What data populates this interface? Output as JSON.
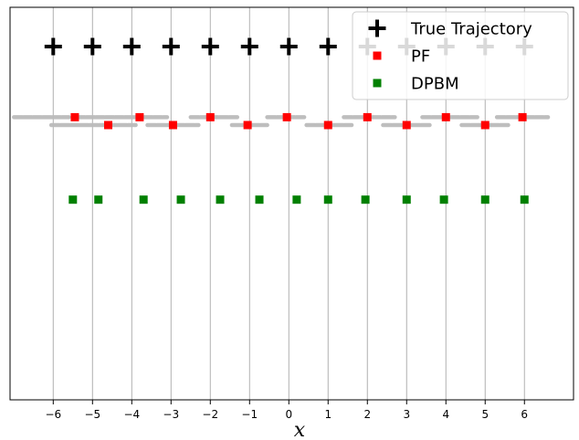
{
  "chart_data": {
    "type": "scatter",
    "xlabel": "x",
    "ylabel": "",
    "xlim": [
      -7.1,
      7.25
    ],
    "ylim": [
      0,
      1
    ],
    "x_ticks": [
      -6,
      -5,
      -4,
      -3,
      -2,
      -1,
      0,
      1,
      2,
      3,
      4,
      5,
      6
    ],
    "x_tick_labels": [
      "−6",
      "−5",
      "−4",
      "−3",
      "−2",
      "−1",
      "0",
      "1",
      "2",
      "3",
      "4",
      "5",
      "6"
    ],
    "grid": "vertical lines at x ticks",
    "legend": {
      "placement": "top-right",
      "entries": [
        "True Trajectory",
        "PF",
        "DPBM"
      ]
    },
    "particles": {
      "color": "#bbbbbb",
      "segments": [
        {
          "row": 0.7,
          "x0": -6.05,
          "x1": -3.9
        },
        {
          "row": 0.7,
          "x0": -3.6,
          "x1": -2.3
        },
        {
          "row": 0.7,
          "x0": -1.45,
          "x1": -0.55
        },
        {
          "row": 0.7,
          "x0": 0.45,
          "x1": 1.6
        },
        {
          "row": 0.7,
          "x0": 2.4,
          "x1": 3.6
        },
        {
          "row": 0.7,
          "x0": 4.4,
          "x1": 5.6
        },
        {
          "row": 0.72,
          "x0": -7.0,
          "x1": -5.6
        },
        {
          "row": 0.72,
          "x0": -5.4,
          "x1": -3.1
        },
        {
          "row": 0.72,
          "x0": -2.5,
          "x1": -1.3
        },
        {
          "row": 0.72,
          "x0": -0.55,
          "x1": 0.4
        },
        {
          "row": 0.72,
          "x0": 1.4,
          "x1": 2.7
        },
        {
          "row": 0.72,
          "x0": 3.4,
          "x1": 4.8
        },
        {
          "row": 0.72,
          "x0": 5.3,
          "x1": 6.6
        }
      ]
    },
    "series": [
      {
        "name": "True Trajectory",
        "marker": "plus",
        "color": "#000000",
        "x": [
          -6,
          -5,
          -4,
          -3,
          -2,
          -1,
          0,
          1,
          2,
          3,
          4,
          5,
          6
        ],
        "y": [
          0.9,
          0.9,
          0.9,
          0.9,
          0.9,
          0.9,
          0.9,
          0.9,
          0.9,
          0.9,
          0.9,
          0.9,
          0.9
        ]
      },
      {
        "name": "PF",
        "marker": "square",
        "color": "#ff0000",
        "x": [
          -5.45,
          -4.6,
          -3.8,
          -2.95,
          -2.0,
          -1.05,
          -0.05,
          1.0,
          2.0,
          3.0,
          4.0,
          5.0,
          5.95
        ],
        "y": [
          0.72,
          0.7,
          0.72,
          0.7,
          0.72,
          0.7,
          0.72,
          0.7,
          0.72,
          0.7,
          0.72,
          0.7,
          0.72
        ]
      },
      {
        "name": "DPBM",
        "marker": "square",
        "color": "#008000",
        "x": [
          -5.5,
          -4.85,
          -3.7,
          -2.75,
          -1.75,
          -0.75,
          0.2,
          1.0,
          1.95,
          3.0,
          3.95,
          5.0,
          6.0
        ],
        "y": [
          0.51,
          0.51,
          0.51,
          0.51,
          0.51,
          0.51,
          0.51,
          0.51,
          0.51,
          0.51,
          0.51,
          0.51,
          0.51
        ]
      }
    ]
  }
}
